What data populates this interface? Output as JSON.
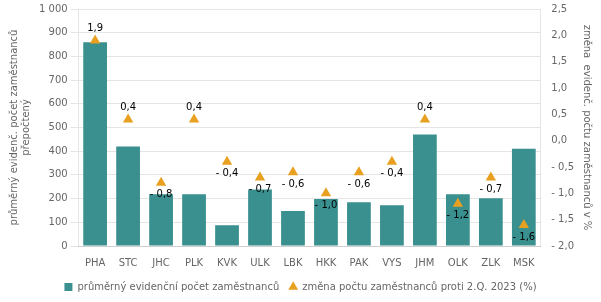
{
  "chart_data": {
    "type": "bar",
    "categories": [
      "PHA",
      "STC",
      "JHC",
      "PLK",
      "KVK",
      "ULK",
      "LBK",
      "HKK",
      "PAK",
      "VYS",
      "JHM",
      "OLK",
      "ZLK",
      "MSK"
    ],
    "series": [
      {
        "name": "průměrný evidenční počet zaměstnanců",
        "type": "bar",
        "color": "#3a8f8f",
        "values": [
          860,
          420,
          218,
          218,
          88,
          238,
          148,
          198,
          185,
          172,
          470,
          218,
          202,
          410
        ]
      },
      {
        "name": "změna počtu zaměstnanců proti 2.Q. 2023 (%)",
        "type": "scatter",
        "color": "#e8a020",
        "marker": "triangle",
        "axis": "y2",
        "values": [
          1.9,
          0.4,
          -0.8,
          0.4,
          -0.4,
          -0.7,
          -0.6,
          -1.0,
          -0.6,
          -0.4,
          0.4,
          -1.2,
          -0.7,
          -1.6
        ],
        "data_labels": true,
        "value_labels": [
          "1,9",
          "0,4",
          "- 0,8",
          "0,4",
          "- 0,4",
          "- 0,7",
          "- 0,6",
          "- 1,0",
          "- 0,6",
          "- 0,4",
          "0,4",
          "- 1,2",
          "- 0,7",
          "- 1,6"
        ]
      }
    ],
    "ylabel": "průměrný evidenč. počet zaměstnanců\npřepočtený",
    "y2label": "změna  evidenč. počtu zaměstnanců v %",
    "ylim": [
      0,
      1000
    ],
    "yticks": [
      0,
      100,
      200,
      300,
      400,
      500,
      600,
      700,
      800,
      900,
      {
        "value": 1000,
        "label": "1 000"
      }
    ],
    "y2lim": [
      -2.0,
      2.5
    ],
    "y2ticks": [
      {
        "value": -2.0,
        "label": "- 2,0"
      },
      {
        "value": -1.5,
        "label": "- 1,5"
      },
      {
        "value": -1.0,
        "label": "- 1,0"
      },
      {
        "value": -0.5,
        "label": "- 0,5"
      },
      {
        "value": 0.0,
        "label": "0,0"
      },
      {
        "value": 0.5,
        "label": "0,5"
      },
      {
        "value": 1.0,
        "label": "1,0"
      },
      {
        "value": 1.5,
        "label": "1,5"
      },
      {
        "value": 2.0,
        "label": "2,0"
      },
      {
        "value": 2.5,
        "label": "2,5"
      }
    ],
    "grid": true,
    "legend": "bottom"
  }
}
